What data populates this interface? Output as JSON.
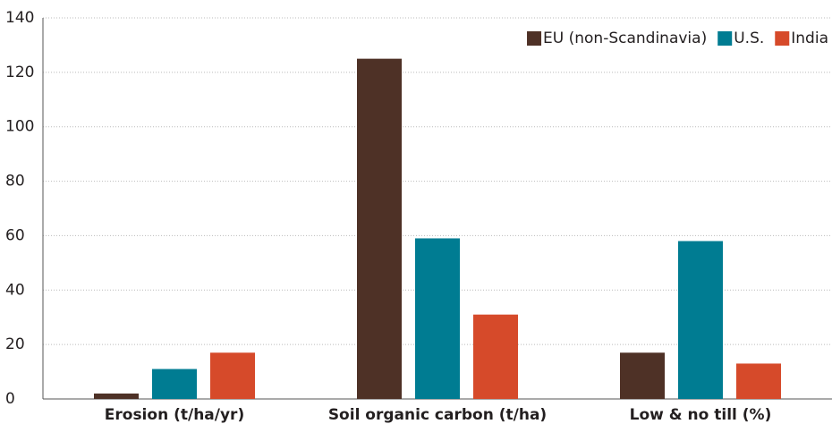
{
  "chart_data": {
    "type": "bar",
    "categories": [
      "Erosion (t/ha/yr)",
      "Soil organic carbon (t/ha)",
      "Low & no till (%)"
    ],
    "series": [
      {
        "name": "EU (non-Scandinavia)",
        "color": "#4e3126",
        "values": [
          2,
          125,
          17
        ]
      },
      {
        "name": "U.S.",
        "color": "#007c92",
        "values": [
          11,
          59,
          58
        ]
      },
      {
        "name": "India",
        "color": "#d64a2a",
        "values": [
          17,
          31,
          13
        ]
      }
    ],
    "ylim": [
      0,
      140
    ],
    "yticks": [
      0,
      20,
      40,
      60,
      80,
      100,
      120,
      140
    ],
    "grid": true,
    "legend": "top-right"
  }
}
